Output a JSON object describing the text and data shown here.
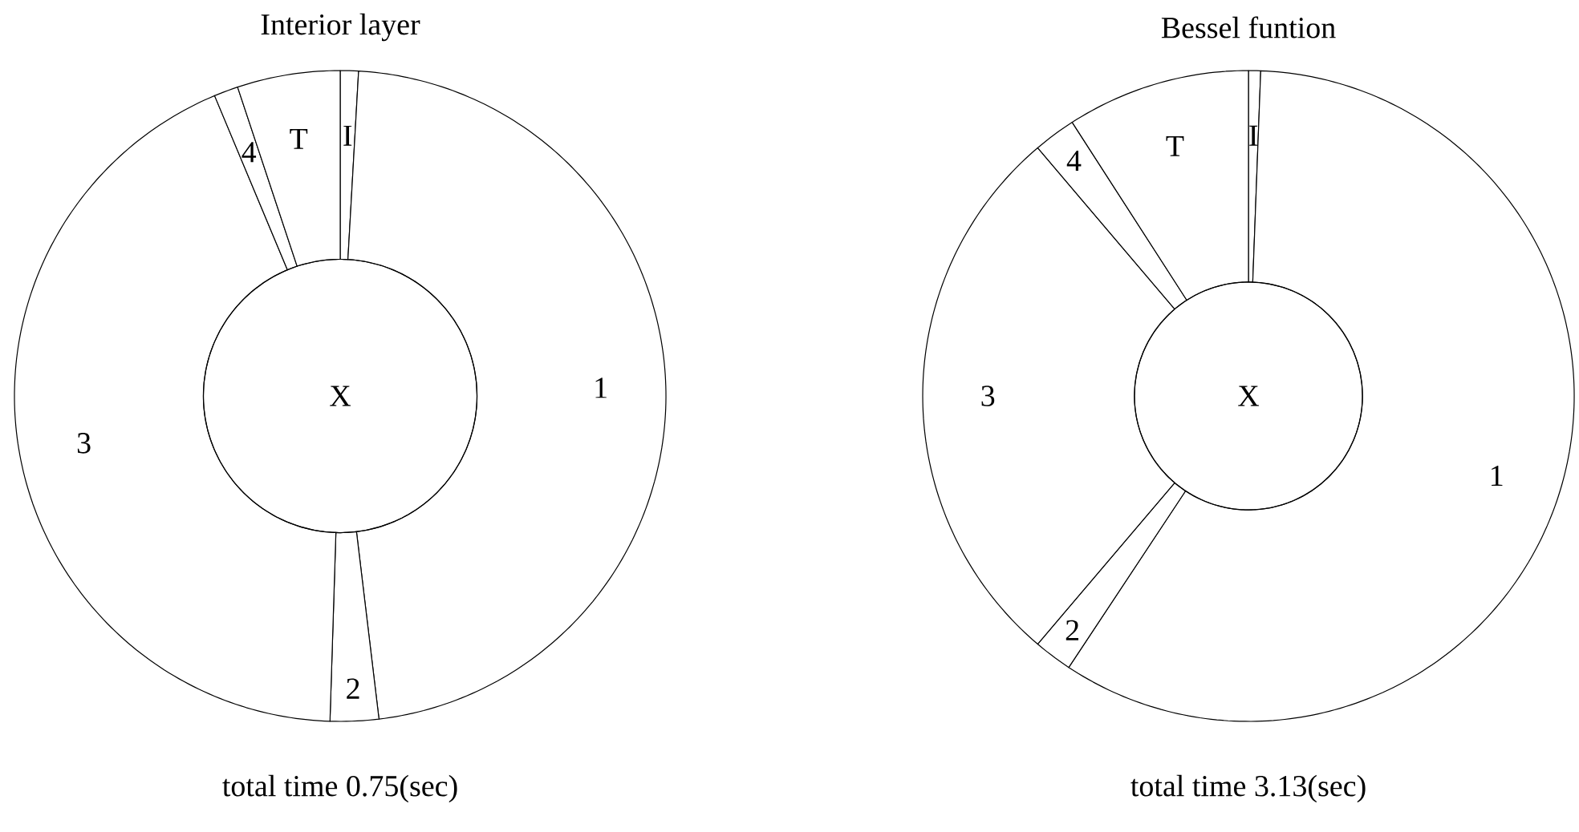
{
  "chart_data": [
    {
      "type": "donut",
      "title": "Interior layer",
      "categories": [
        "I",
        "1",
        "2",
        "3",
        "4",
        "T"
      ],
      "values": [
        0.9,
        47.2,
        2.4,
        43.2,
        1.2,
        5.1
      ],
      "colors": [
        "#ffffff",
        "#ffffff",
        "#ffffff",
        "#ffffff",
        "#ffffff",
        "#ffffff"
      ],
      "annotations": [
        "X",
        "total time 0.75(sec)"
      ]
    },
    {
      "type": "donut",
      "title": "Bessel funtion",
      "categories": [
        "I",
        "1",
        "2",
        "3",
        "4",
        "T"
      ],
      "values": [
        0.6,
        58.7,
        1.9,
        27.6,
        2.1,
        9.1
      ],
      "colors": [
        "#ffffff",
        "#ffffff",
        "#ffffff",
        "#ffffff",
        "#ffffff",
        "#ffffff"
      ],
      "annotations": [
        "X",
        "total time 3.13(sec)"
      ]
    }
  ]
}
